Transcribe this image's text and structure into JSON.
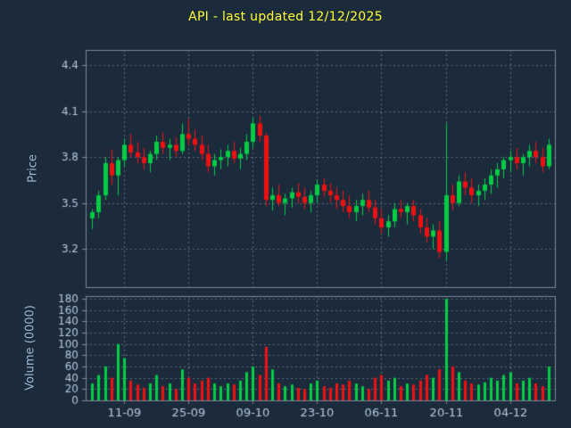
{
  "chart_data": {
    "type": "candlestick",
    "title": "API - last updated 12/12/2025",
    "price_panel": {
      "ylabel": "Price",
      "ylim": [
        2.95,
        4.5
      ],
      "yticks": [
        4.4,
        4.1,
        3.8,
        3.5,
        3.2
      ],
      "grid": true
    },
    "volume_panel": {
      "ylabel": "Volume (0000)",
      "ylim": [
        0,
        185
      ],
      "yticks": [
        180,
        160,
        140,
        120,
        100,
        80,
        60,
        40,
        20,
        0
      ],
      "grid": true
    },
    "x": {
      "xlim": [
        -1,
        72
      ],
      "tick_positions": [
        5,
        15,
        25,
        35,
        45,
        55,
        65
      ],
      "tick_labels": [
        "11-09",
        "25-09",
        "09-10",
        "23-10",
        "06-11",
        "20-11",
        "04-12"
      ]
    },
    "ohlcv": {
      "open": [
        3.4,
        3.44,
        3.55,
        3.76,
        3.68,
        3.78,
        3.88,
        3.83,
        3.8,
        3.76,
        3.82,
        3.9,
        3.86,
        3.88,
        3.84,
        3.95,
        3.92,
        3.88,
        3.82,
        3.74,
        3.78,
        3.8,
        3.84,
        3.79,
        3.82,
        3.9,
        4.02,
        3.94,
        3.52,
        3.55,
        3.5,
        3.53,
        3.57,
        3.54,
        3.5,
        3.55,
        3.62,
        3.58,
        3.55,
        3.52,
        3.48,
        3.44,
        3.48,
        3.52,
        3.47,
        3.4,
        3.34,
        3.38,
        3.46,
        3.44,
        3.48,
        3.42,
        3.34,
        3.28,
        3.32,
        3.18,
        3.55,
        3.5,
        3.64,
        3.6,
        3.55,
        3.58,
        3.62,
        3.68,
        3.72,
        3.78,
        3.8,
        3.76,
        3.8,
        3.84,
        3.8,
        3.74
      ],
      "high": [
        3.46,
        3.58,
        3.8,
        3.85,
        3.8,
        3.92,
        3.95,
        3.9,
        3.86,
        3.84,
        3.94,
        3.96,
        3.92,
        3.93,
        4.02,
        4.05,
        3.98,
        3.94,
        3.88,
        3.82,
        3.85,
        3.88,
        3.9,
        3.86,
        3.95,
        4.06,
        4.07,
        3.96,
        3.6,
        3.62,
        3.56,
        3.6,
        3.63,
        3.6,
        3.58,
        3.65,
        3.66,
        3.63,
        3.6,
        3.58,
        3.55,
        3.52,
        3.56,
        3.58,
        3.52,
        3.46,
        3.42,
        3.5,
        3.52,
        3.5,
        3.52,
        3.46,
        3.4,
        3.36,
        3.38,
        4.02,
        3.62,
        3.68,
        3.7,
        3.66,
        3.62,
        3.66,
        3.72,
        3.76,
        3.8,
        3.84,
        3.86,
        3.82,
        3.88,
        3.9,
        3.86,
        3.92
      ],
      "low": [
        3.33,
        3.4,
        3.52,
        3.62,
        3.55,
        3.74,
        3.8,
        3.76,
        3.72,
        3.7,
        3.78,
        3.82,
        3.78,
        3.8,
        3.82,
        3.88,
        3.84,
        3.78,
        3.7,
        3.68,
        3.72,
        3.74,
        3.76,
        3.72,
        3.78,
        3.86,
        3.9,
        3.48,
        3.45,
        3.48,
        3.42,
        3.47,
        3.5,
        3.46,
        3.44,
        3.5,
        3.54,
        3.5,
        3.46,
        3.44,
        3.4,
        3.38,
        3.42,
        3.44,
        3.36,
        3.3,
        3.28,
        3.34,
        3.4,
        3.36,
        3.38,
        3.3,
        3.24,
        3.2,
        3.14,
        3.12,
        3.45,
        3.48,
        3.55,
        3.5,
        3.48,
        3.52,
        3.56,
        3.6,
        3.66,
        3.7,
        3.72,
        3.68,
        3.74,
        3.76,
        3.7,
        3.72
      ],
      "close": [
        3.44,
        3.55,
        3.76,
        3.68,
        3.78,
        3.88,
        3.83,
        3.8,
        3.76,
        3.82,
        3.9,
        3.86,
        3.88,
        3.84,
        3.95,
        3.92,
        3.88,
        3.82,
        3.74,
        3.78,
        3.8,
        3.84,
        3.79,
        3.82,
        3.9,
        4.02,
        3.94,
        3.52,
        3.55,
        3.5,
        3.53,
        3.57,
        3.54,
        3.5,
        3.55,
        3.62,
        3.58,
        3.55,
        3.52,
        3.48,
        3.44,
        3.48,
        3.52,
        3.47,
        3.4,
        3.34,
        3.38,
        3.46,
        3.44,
        3.48,
        3.42,
        3.34,
        3.28,
        3.32,
        3.18,
        3.55,
        3.5,
        3.64,
        3.6,
        3.55,
        3.58,
        3.62,
        3.68,
        3.72,
        3.78,
        3.8,
        3.76,
        3.8,
        3.84,
        3.8,
        3.74,
        3.88
      ],
      "volume": [
        30,
        45,
        60,
        40,
        100,
        75,
        35,
        28,
        22,
        30,
        45,
        25,
        30,
        20,
        55,
        40,
        30,
        35,
        40,
        30,
        25,
        30,
        28,
        35,
        50,
        60,
        45,
        95,
        55,
        30,
        25,
        28,
        22,
        20,
        30,
        35,
        25,
        22,
        30,
        28,
        35,
        30,
        25,
        20,
        40,
        45,
        35,
        40,
        25,
        30,
        28,
        35,
        45,
        40,
        55,
        180,
        60,
        50,
        35,
        30,
        28,
        32,
        40,
        35,
        45,
        50,
        30,
        35,
        40,
        30,
        25,
        60
      ]
    },
    "colors": {
      "background": "#1c2b3c",
      "up": "#00cc44",
      "down": "#ee1111",
      "grid": "#c8d4e0",
      "tick_text": "#b5c9dd",
      "axis_label": "#9db8d2",
      "title": "#ffff33",
      "spine": "#7a8694"
    },
    "legend": "none"
  }
}
